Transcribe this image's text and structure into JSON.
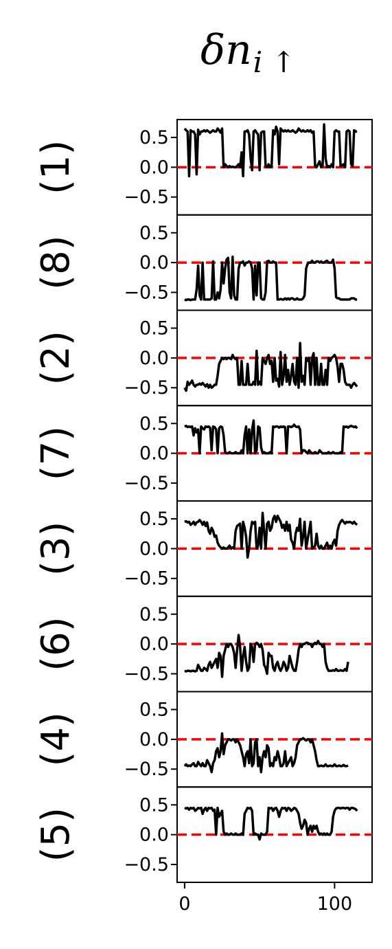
{
  "chart_data": {
    "type": "line",
    "title": "δn",
    "title_subscript": "i ↑",
    "x_ticks": [
      0,
      100
    ],
    "x_range": [
      -5,
      125
    ],
    "y_ticks": [
      0.5,
      0.0,
      -0.5
    ],
    "y_tick_labels": [
      "0.5",
      "0.0",
      "−0.5"
    ],
    "y_range": [
      -0.8,
      0.8
    ],
    "reference_line": {
      "y": 0.0,
      "color": "#ff0000",
      "style": "dashed"
    },
    "line_color": "#000000",
    "grid": false,
    "panels": [
      {
        "label": "(1)",
        "values": [
          0.65,
          0.62,
          0.6,
          -0.15,
          0.62,
          0.6,
          0.6,
          0.55,
          -0.12,
          0.63,
          0.55,
          0.6,
          0.6,
          0.62,
          0.6,
          0.62,
          0.6,
          0.58,
          0.6,
          0.62,
          0.6,
          0.6,
          0.65,
          0.62,
          0.58,
          0.65,
          0.0,
          0.05,
          0.02,
          0.0,
          0.02,
          0.0,
          0.01,
          0.0,
          0.0,
          0.02,
          0.05,
          0.0,
          0.25,
          -0.15,
          0.6,
          0.6,
          0.62,
          0.55,
          0.15,
          -0.05,
          0.6,
          0.62,
          0.58,
          0.55,
          -0.05,
          0.58,
          0.6,
          0.6,
          0.02,
          0.0,
          0.05,
          0.0,
          0.02,
          0.62,
          0.55,
          0.68,
          0.6,
          0.05,
          0.65,
          0.62,
          0.6,
          0.62,
          0.6,
          0.62,
          0.6,
          0.6,
          0.62,
          0.6,
          0.58,
          0.6,
          0.65,
          0.62,
          0.6,
          0.62,
          0.6,
          0.6,
          0.62,
          0.6,
          0.62,
          0.58,
          0.6,
          0.02,
          0.0,
          0.05,
          0.1,
          0.0,
          0.02,
          0.72,
          0.15,
          0.0,
          0.02,
          0.0,
          0.05,
          0.0,
          0.6,
          0.62,
          0.6,
          0.6,
          0.02,
          0.03,
          0.05,
          0.0,
          0.6,
          0.62,
          0.6,
          0.05,
          0.02,
          0.62,
          0.6,
          0.6
        ]
      },
      {
        "label": "(8)",
        "values": [
          -0.62,
          -0.63,
          -0.62,
          -0.62,
          -0.63,
          -0.62,
          -0.62,
          -0.62,
          -0.45,
          -0.05,
          -0.55,
          -0.62,
          0.0,
          -0.62,
          -0.62,
          -0.62,
          -0.62,
          -0.62,
          -0.6,
          0.02,
          -0.62,
          -0.62,
          -0.5,
          -0.6,
          -0.45,
          0.0,
          -0.35,
          -0.1,
          0.05,
          0.08,
          -0.5,
          -0.6,
          0.1,
          -0.55,
          -0.62,
          -0.62,
          -0.1,
          0.0,
          0.0,
          0.02,
          -0.05,
          0.0,
          0.0,
          0.02,
          0.0,
          -0.1,
          -0.62,
          -0.05,
          -0.55,
          0.0,
          0.0,
          -0.6,
          -0.62,
          -0.62,
          -0.5,
          0.02,
          0.03,
          0.0,
          0.0,
          0.02,
          0.0,
          0.0,
          -0.62,
          -0.62,
          -0.61,
          -0.62,
          -0.62,
          -0.6,
          -0.62,
          -0.6,
          -0.62,
          -0.6,
          -0.6,
          -0.62,
          -0.62,
          -0.6,
          -0.62,
          -0.62,
          -0.62,
          -0.6,
          -0.55,
          -0.1,
          -0.02,
          0.0,
          0.0,
          0.03,
          0.0,
          0.0,
          0.02,
          0.02,
          0.0,
          0.02,
          0.0,
          0.0,
          0.02,
          0.03,
          0.0,
          0.0,
          0.0,
          0.05,
          -0.1,
          -0.58,
          -0.6,
          -0.6,
          -0.62,
          -0.62,
          -0.62,
          -0.62,
          -0.62,
          -0.62,
          -0.62,
          -0.6,
          -0.6,
          -0.6,
          -0.62,
          -0.62
        ]
      },
      {
        "label": "(2)",
        "values": [
          -0.5,
          -0.55,
          -0.4,
          -0.45,
          -0.42,
          -0.38,
          -0.45,
          -0.48,
          -0.45,
          -0.45,
          -0.43,
          -0.45,
          -0.42,
          -0.45,
          -0.48,
          -0.44,
          -0.5,
          -0.45,
          -0.5,
          -0.48,
          -0.45,
          -0.45,
          -0.3,
          -0.1,
          -0.05,
          0.0,
          -0.02,
          0.0,
          -0.02,
          0.0,
          0.0,
          -0.02,
          0.05,
          0.0,
          -0.02,
          0.0,
          -0.45,
          -0.45,
          -0.05,
          -0.45,
          -0.45,
          -0.45,
          -0.1,
          -0.45,
          -0.45,
          -0.45,
          -0.4,
          -0.45,
          0.12,
          -0.45,
          -0.4,
          -0.45,
          0.0,
          -0.05,
          -0.1,
          0.0,
          0.05,
          -0.1,
          -0.05,
          -0.4,
          0.0,
          -0.38,
          -0.35,
          -0.48,
          0.1,
          -0.45,
          -0.3,
          0.05,
          -0.4,
          -0.2,
          -0.45,
          -0.3,
          -0.1,
          -0.4,
          -0.45,
          0.0,
          -0.5,
          0.25,
          -0.4,
          -0.3,
          -0.45,
          0.0,
          -0.05,
          0.0,
          -0.45,
          0.0,
          0.08,
          -0.45,
          0.0,
          -0.45,
          -0.45,
          -0.1,
          -0.45,
          -0.45,
          -0.2,
          -0.45,
          0.0,
          -0.05,
          0.0,
          0.02,
          0.05,
          0.0,
          -0.15,
          -0.4,
          -0.1,
          -0.1,
          -0.2,
          -0.4,
          -0.45,
          -0.45,
          -0.45,
          -0.5,
          -0.45,
          -0.42,
          -0.45,
          -0.48
        ]
      },
      {
        "label": "(7)",
        "values": [
          0.45,
          0.46,
          0.44,
          0.45,
          0.44,
          0.45,
          0.3,
          0.42,
          0.35,
          0.4,
          0.0,
          0.45,
          0.42,
          0.4,
          0.45,
          0.44,
          0.45,
          0.43,
          0.05,
          0.45,
          0.44,
          0.4,
          0.0,
          0.42,
          0.45,
          0.44,
          0.3,
          0.02,
          0.0,
          0.0,
          0.02,
          0.0,
          0.0,
          0.0,
          0.02,
          0.0,
          0.0,
          0.0,
          0.05,
          0.0,
          0.3,
          0.45,
          0.0,
          0.4,
          0.0,
          0.4,
          0.55,
          0.0,
          0.05,
          0.45,
          0.43,
          0.1,
          0.0,
          0.02,
          0.0,
          0.0,
          0.0,
          0.02,
          0.0,
          0.45,
          0.44,
          0.45,
          0.45,
          0.43,
          0.45,
          0.44,
          0.45,
          0.44,
          0.0,
          0.45,
          0.45,
          0.44,
          0.45,
          0.48,
          0.45,
          0.44,
          0.45,
          0.4,
          0.0,
          0.05,
          0.05,
          0.02,
          0.0,
          0.05,
          0.02,
          0.0,
          0.0,
          0.02,
          0.0,
          0.0,
          0.05,
          0.02,
          0.0,
          0.0,
          0.0,
          0.0,
          0.02,
          0.0,
          0.0,
          0.02,
          0.0,
          0.0,
          0.0,
          0.0,
          0.02,
          0.0,
          0.45,
          0.44,
          0.45,
          0.43,
          0.45,
          0.46,
          0.45,
          0.44,
          0.45,
          0.42
        ]
      },
      {
        "label": "(3)",
        "values": [
          0.45,
          0.46,
          0.44,
          0.45,
          0.4,
          0.42,
          0.45,
          0.4,
          0.44,
          0.45,
          0.48,
          0.45,
          0.4,
          0.45,
          0.38,
          0.44,
          0.3,
          0.25,
          0.35,
          0.3,
          0.2,
          0.22,
          0.1,
          0.05,
          0.02,
          0.0,
          0.02,
          0.0,
          0.0,
          0.02,
          0.05,
          0.0,
          0.02,
          0.0,
          0.3,
          0.38,
          0.4,
          0.42,
          0.0,
          0.45,
          0.35,
          0.2,
          -0.15,
          0.0,
          0.3,
          0.45,
          0.42,
          0.45,
          0.0,
          0.05,
          0.35,
          0.0,
          0.6,
          0.3,
          0.0,
          0.42,
          0.45,
          0.3,
          0.35,
          0.5,
          0.55,
          0.45,
          0.55,
          0.5,
          0.45,
          0.35,
          0.4,
          0.3,
          0.45,
          0.3,
          0.4,
          0.15,
          0.1,
          0.0,
          0.25,
          0.35,
          0.3,
          0.5,
          0.05,
          0.2,
          0.45,
          0.0,
          0.15,
          0.3,
          0.45,
          0.0,
          0.02,
          0.05,
          0.25,
          0.05,
          0.0,
          0.05,
          0.0,
          0.0,
          0.05,
          0.1,
          0.0,
          0.05,
          0.0,
          0.1,
          0.15,
          0.05,
          0.3,
          0.4,
          0.45,
          0.48,
          0.45,
          0.42,
          0.45,
          0.44,
          0.45,
          0.44,
          0.42,
          0.45,
          0.42,
          0.4
        ]
      },
      {
        "label": "(6)",
        "values": [
          -0.45,
          -0.46,
          -0.45,
          -0.45,
          -0.46,
          -0.45,
          -0.45,
          -0.46,
          -0.45,
          -0.35,
          -0.4,
          -0.45,
          -0.45,
          -0.4,
          -0.42,
          -0.45,
          -0.35,
          -0.3,
          -0.4,
          -0.35,
          -0.3,
          -0.25,
          -0.4,
          -0.15,
          -0.2,
          -0.55,
          -0.2,
          -0.1,
          0.0,
          -0.05,
          0.0,
          0.0,
          -0.05,
          -0.15,
          -0.4,
          -0.1,
          0.15,
          -0.05,
          -0.45,
          -0.2,
          -0.05,
          -0.3,
          -0.45,
          -0.4,
          0.0,
          -0.05,
          -0.3,
          0.0,
          0.02,
          0.0,
          -0.05,
          0.0,
          -0.1,
          -0.35,
          -0.4,
          -0.5,
          -0.15,
          -0.2,
          -0.2,
          -0.4,
          -0.45,
          -0.35,
          -0.3,
          -0.4,
          -0.45,
          -0.4,
          -0.3,
          -0.35,
          -0.45,
          -0.4,
          -0.2,
          -0.3,
          -0.4,
          -0.45,
          -0.45,
          -0.3,
          -0.1,
          0.0,
          -0.05,
          0.0,
          0.0,
          0.02,
          0.02,
          0.0,
          0.0,
          -0.05,
          0.0,
          0.02,
          0.0,
          0.05,
          0.0,
          0.0,
          -0.05,
          0.0,
          -0.3,
          -0.4,
          -0.45,
          -0.45,
          -0.45,
          -0.44,
          -0.45,
          -0.42,
          -0.45,
          -0.45,
          -0.44,
          -0.45,
          -0.45,
          -0.42,
          -0.45,
          -0.3
        ]
      },
      {
        "label": "(4)",
        "values": [
          -0.45,
          -0.42,
          -0.45,
          -0.44,
          -0.45,
          -0.42,
          -0.4,
          -0.45,
          -0.45,
          -0.38,
          -0.42,
          -0.45,
          -0.4,
          -0.45,
          -0.45,
          -0.35,
          -0.4,
          -0.45,
          -0.55,
          -0.4,
          -0.35,
          -0.2,
          -0.15,
          -0.3,
          -0.2,
          0.1,
          -0.25,
          -0.1,
          -0.05,
          0.0,
          0.0,
          -0.02,
          0.0,
          0.0,
          -0.05,
          0.0,
          -0.05,
          -0.1,
          -0.2,
          -0.3,
          -0.45,
          -0.25,
          -0.2,
          -0.4,
          0.0,
          -0.45,
          -0.4,
          -0.05,
          0.0,
          -0.45,
          -0.3,
          -0.55,
          -0.3,
          -0.2,
          -0.3,
          -0.1,
          -0.15,
          -0.45,
          -0.4,
          -0.45,
          -0.3,
          -0.35,
          -0.2,
          -0.3,
          -0.45,
          -0.45,
          -0.4,
          -0.2,
          -0.45,
          -0.4,
          -0.35,
          -0.3,
          -0.45,
          -0.4,
          -0.3,
          -0.1,
          -0.05,
          0.0,
          0.0,
          0.02,
          0.0,
          -0.02,
          0.0,
          0.0,
          -0.05,
          0.0,
          -0.1,
          -0.2,
          -0.35,
          -0.45,
          -0.45,
          -0.44,
          -0.45,
          -0.45,
          -0.42,
          -0.45,
          -0.45,
          -0.44,
          -0.45,
          -0.45,
          -0.42,
          -0.45,
          -0.45,
          -0.44,
          -0.45,
          -0.45,
          -0.43,
          -0.45,
          -0.45,
          -0.44
        ]
      },
      {
        "label": "(5)",
        "values": [
          0.45,
          0.44,
          0.45,
          0.42,
          0.45,
          0.44,
          0.45,
          0.4,
          0.42,
          0.45,
          0.44,
          0.45,
          0.35,
          0.42,
          0.45,
          0.4,
          0.45,
          0.44,
          0.45,
          0.4,
          0.42,
          0.0,
          0.45,
          0.3,
          0.35,
          0.4,
          0.05,
          0.0,
          0.02,
          0.0,
          0.0,
          0.02,
          0.0,
          0.0,
          0.02,
          0.0,
          0.0,
          0.0,
          0.02,
          0.0,
          0.35,
          0.4,
          0.45,
          0.44,
          0.45,
          0.4,
          0.0,
          0.02,
          0.0,
          0.0,
          -0.08,
          0.02,
          0.0,
          0.0,
          0.0,
          0.05,
          0.45,
          0.44,
          0.45,
          0.4,
          0.44,
          0.45,
          0.4,
          0.3,
          0.4,
          0.45,
          0.44,
          0.45,
          0.4,
          0.45,
          0.44,
          0.4,
          0.42,
          0.45,
          0.44,
          0.4,
          0.35,
          0.2,
          0.1,
          0.15,
          0.25,
          0.2,
          0.0,
          0.1,
          0.15,
          0.05,
          0.15,
          0.1,
          0.15,
          0.05,
          0.0,
          0.02,
          0.0,
          0.02,
          0.0,
          0.02,
          0.0,
          0.0,
          0.05,
          0.3,
          0.4,
          0.44,
          0.45,
          0.45,
          0.44,
          0.45,
          0.45,
          0.44,
          0.45,
          0.45,
          0.42,
          0.45,
          0.45,
          0.44,
          0.43,
          0.4
        ]
      }
    ]
  }
}
